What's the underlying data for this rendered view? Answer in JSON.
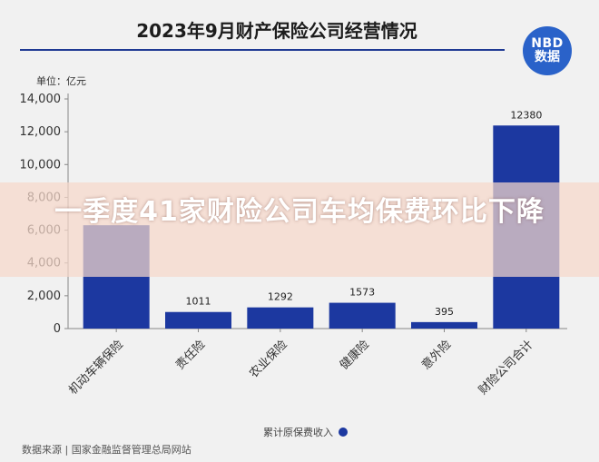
{
  "header": {
    "title": "2023年9月财产保险公司经营情况"
  },
  "logo": {
    "line1": "NBD",
    "line2": "数据"
  },
  "unit_label": "单位：亿元",
  "overlay": {
    "text": "一季度41家财险公司车均保费环比下降"
  },
  "source": "数据来源 | 国家金融监督管理总局网站",
  "colors": {
    "bar": "#1c38a0",
    "axis": "#888888",
    "title_rule": "#1f3a93"
  },
  "chart_data": {
    "type": "bar",
    "title": "2023年9月财产保险公司经营情况",
    "ylabel": "单位：亿元",
    "xlabel": "",
    "ylim": [
      0,
      14000
    ],
    "yticks": [
      0,
      2000,
      4000,
      6000,
      8000,
      10000,
      12000,
      14000
    ],
    "ytick_labels": [
      "0",
      "2,000",
      "4,000",
      "6,000",
      "8,000",
      "10,000",
      "12,000",
      "14,000"
    ],
    "categories": [
      "机动车辆保险",
      "责任险",
      "农业保险",
      "健康险",
      "意外险",
      "财险公司合计"
    ],
    "series": [
      {
        "name": "累计原保费收入",
        "values": [
          6300,
          1011,
          1292,
          1573,
          395,
          12380
        ],
        "data_labels": [
          "",
          "1011",
          "1292",
          "1573",
          "395",
          "12380"
        ]
      }
    ],
    "legend": "bottom",
    "grid": false
  }
}
